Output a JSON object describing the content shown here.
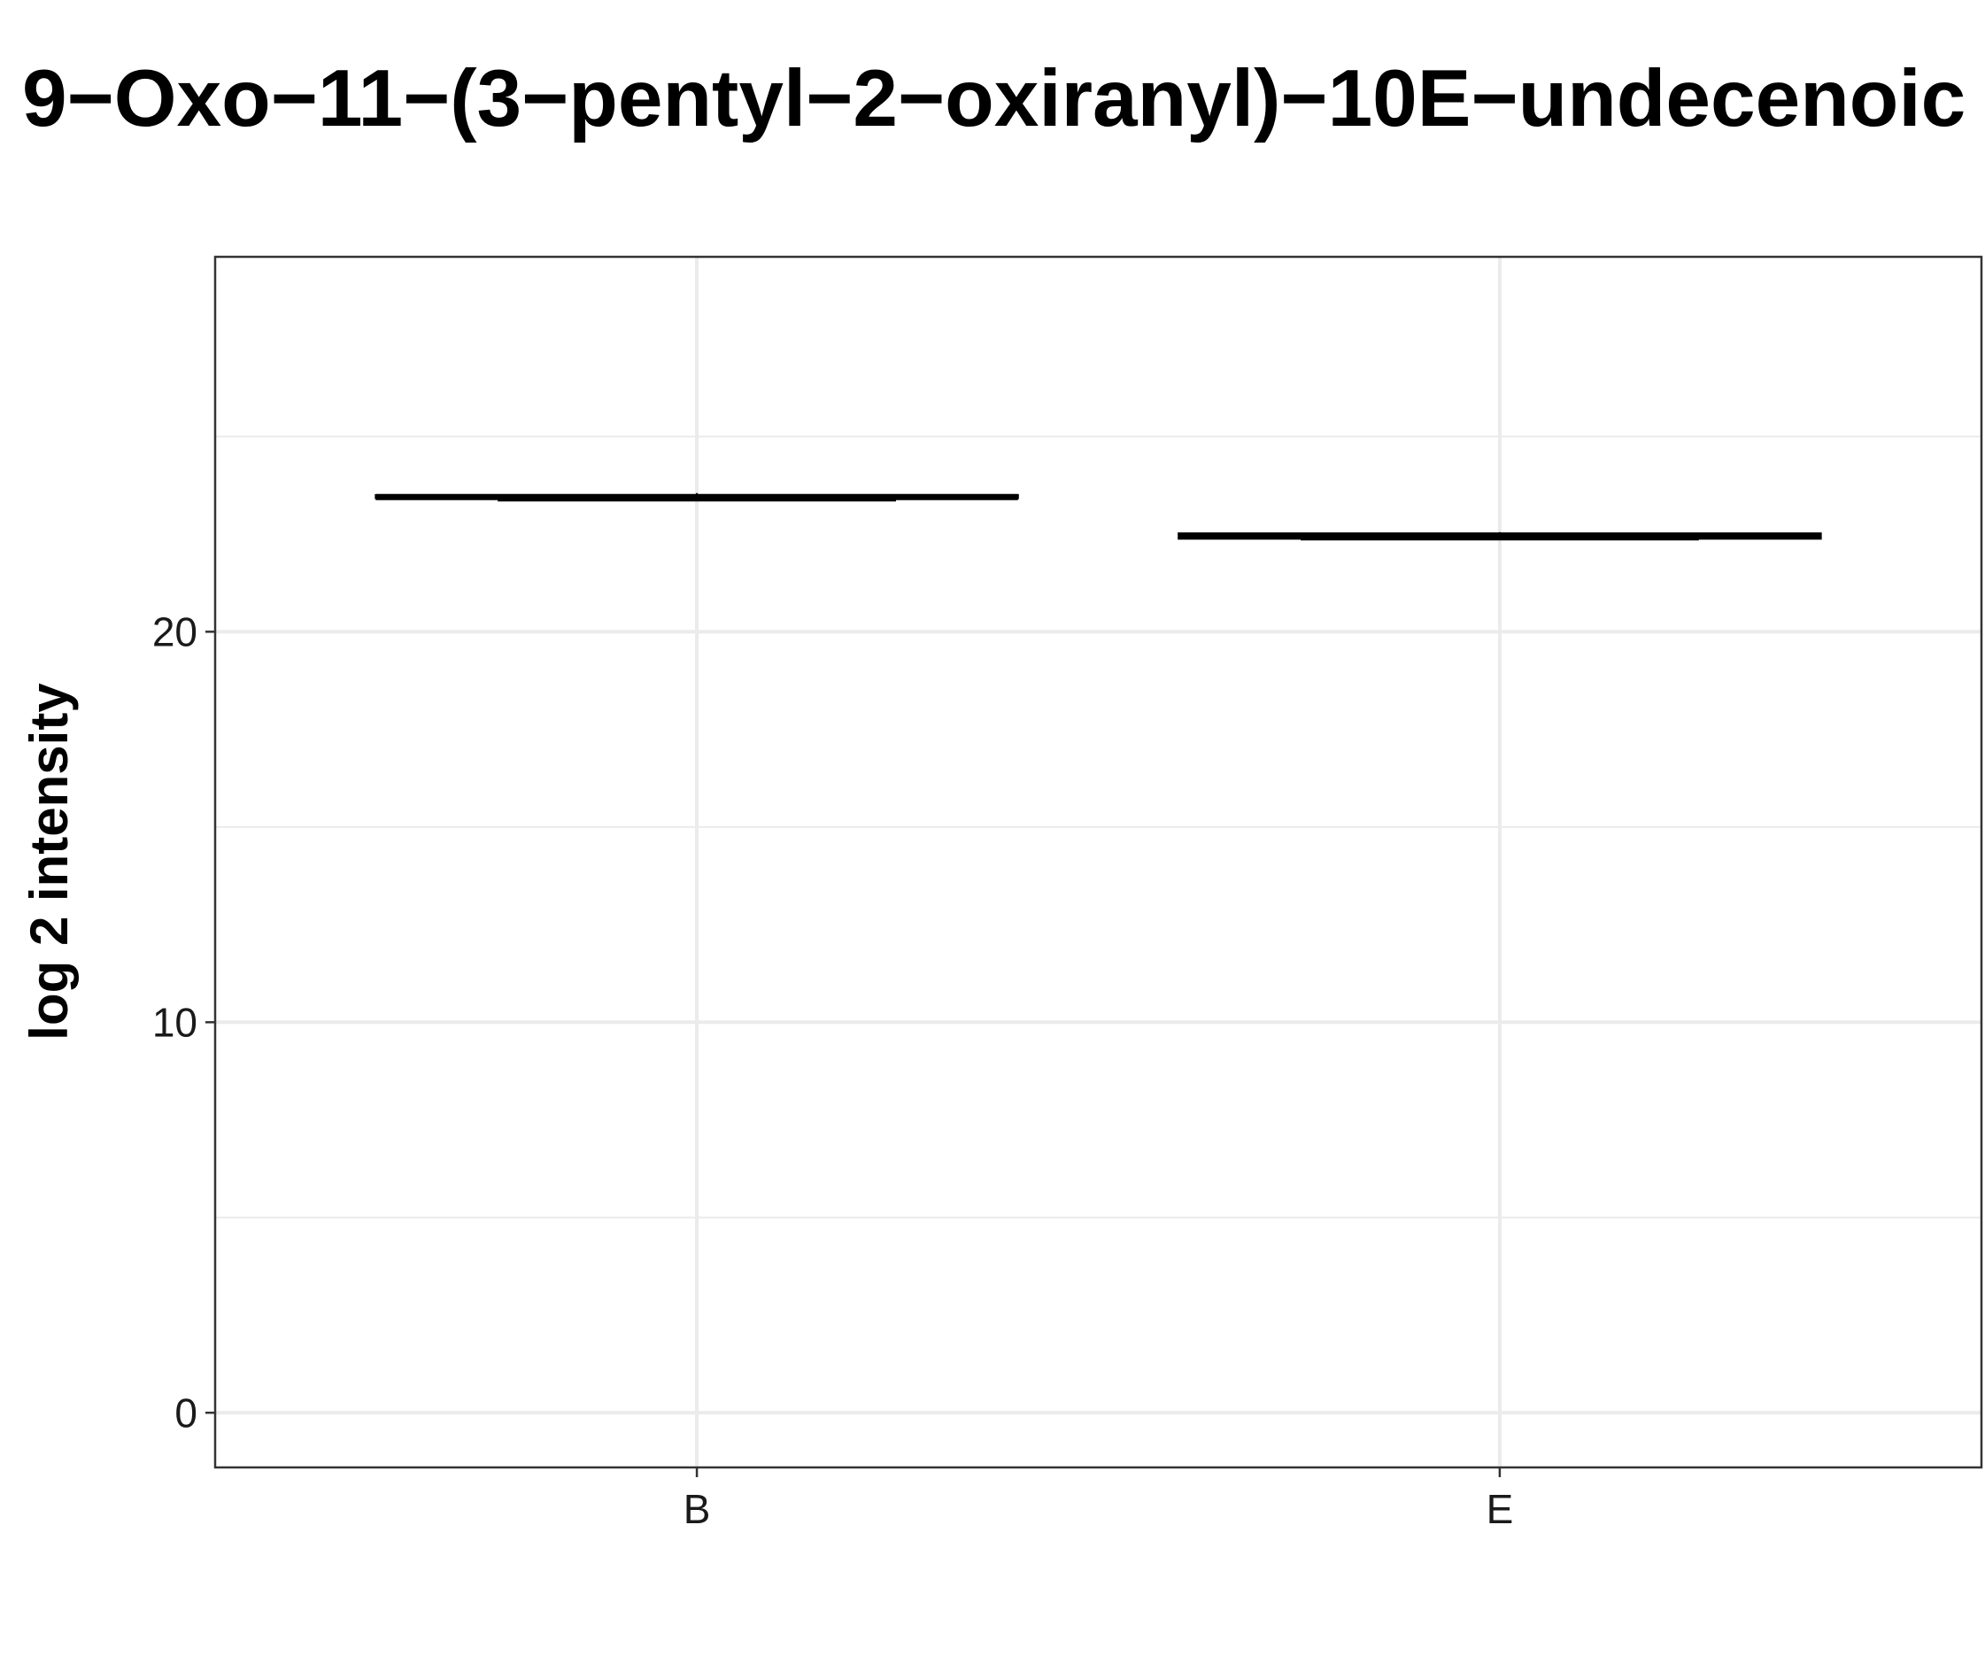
{
  "chart_data": {
    "type": "box",
    "title": "9−Oxo−11−(3−pentyl−2−oxiranyl)−10E−undecenoic",
    "xlabel": "",
    "ylabel": "log 2 intensity",
    "categories": [
      "B",
      "E"
    ],
    "series": [
      {
        "values": [
          23.5,
          22.5
        ]
      }
    ],
    "boxes": [
      {
        "category": "B",
        "min": 23.4,
        "q1": 23.42,
        "median": 23.45,
        "q3": 23.5,
        "max": 23.55
      },
      {
        "category": "E",
        "min": 22.35,
        "q1": 22.38,
        "median": 22.45,
        "q3": 22.52,
        "max": 22.55
      }
    ],
    "ylim": [
      -1.4,
      29.6
    ],
    "yticks": [
      0,
      10,
      20
    ],
    "ytick_labels": [
      "0",
      "10",
      "20"
    ],
    "y_minor_gridlines": [
      5,
      15,
      25
    ],
    "grid": true,
    "legend": "none",
    "colors": {
      "box_line": "#000000",
      "grid": "#ebebeb",
      "panel_border": "#333333",
      "background": "#ffffff"
    }
  }
}
